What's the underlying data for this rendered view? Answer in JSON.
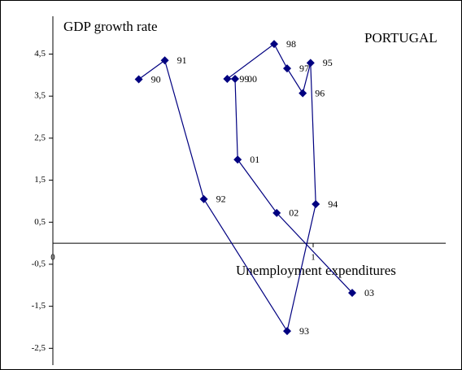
{
  "chart_data": {
    "type": "line",
    "y_label": "GDP growth rate",
    "x_label": "Unemployment expenditures",
    "annotation": "PORTUGAL",
    "xlim": [
      0,
      1.5
    ],
    "ylim": [
      -2.9,
      5.4
    ],
    "xticks": [
      0,
      1
    ],
    "yticks": [
      {
        "value": -2.5,
        "label": "-2,5"
      },
      {
        "value": -1.5,
        "label": "-1,5"
      },
      {
        "value": -0.5,
        "label": "-0,5"
      },
      {
        "value": 0.5,
        "label": "0,5"
      },
      {
        "value": 1.5,
        "label": "1,5"
      },
      {
        "value": 2.5,
        "label": "2,5"
      },
      {
        "value": 3.5,
        "label": "3,5"
      },
      {
        "value": 4.5,
        "label": "4,5"
      }
    ],
    "series": [
      {
        "color": "#000080",
        "x": [
          0.33,
          0.43,
          0.58,
          0.9,
          1.01,
          0.99,
          0.96,
          0.9,
          0.85,
          0.67,
          0.7,
          0.71,
          0.86,
          1.15
        ],
        "values": [
          3.9,
          4.35,
          1.05,
          -2.09,
          0.93,
          4.29,
          3.57,
          4.16,
          4.74,
          3.91,
          3.91,
          1.99,
          0.72,
          -1.18
        ],
        "labels": [
          "90",
          "91",
          "92",
          "93",
          "94",
          "95",
          "96",
          "97",
          "98",
          "99",
          "00",
          "01",
          "02",
          "03"
        ]
      }
    ]
  }
}
